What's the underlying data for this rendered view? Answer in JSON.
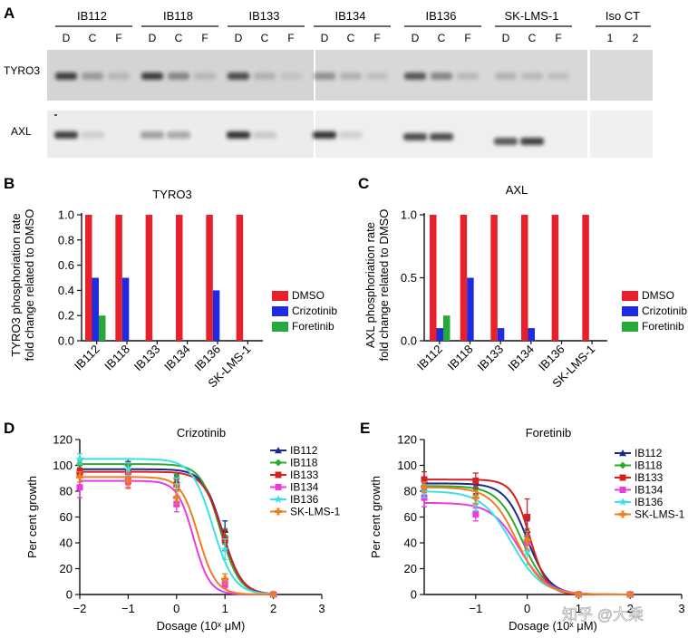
{
  "panel_letters": {
    "A": "A",
    "B": "B",
    "C": "C",
    "D": "D",
    "E": "E"
  },
  "blot": {
    "groups": [
      "IB112",
      "IB118",
      "IB133",
      "IB134",
      "IB136",
      "SK-LMS-1",
      "Iso CT"
    ],
    "lanes": [
      "D",
      "C",
      "F"
    ],
    "iso_lanes": [
      "1",
      "2"
    ],
    "rows": [
      "TYRO3",
      "AXL"
    ],
    "tyro3_intensity": [
      [
        0.85,
        0.45,
        0.25
      ],
      [
        0.85,
        0.55,
        0.25
      ],
      [
        0.8,
        0.3,
        0.15
      ],
      [
        0.5,
        0.3,
        0.2
      ],
      [
        0.75,
        0.55,
        0.25
      ],
      [
        0.3,
        0.25,
        0.2
      ]
    ],
    "axl_intensity": [
      [
        0.85,
        0.15,
        0.05
      ],
      [
        0.45,
        0.4,
        0.05
      ],
      [
        0.9,
        0.2,
        0.05
      ],
      [
        0.9,
        0.15,
        0.05
      ],
      [
        0.8,
        0.8,
        0.05
      ],
      [
        0.75,
        0.85,
        0.05
      ]
    ]
  },
  "watermark": "知乎 @大乘",
  "chart_data": [
    {
      "id": "B",
      "type": "bar",
      "title": "TYRO3",
      "ylabel_lines": [
        "TYRO3 phosphoriation rate",
        "fold change related to DMSO"
      ],
      "xlabel": "",
      "categories": [
        "IB112",
        "IB118",
        "IB133",
        "IB134",
        "IB136",
        "SK-LMS-1"
      ],
      "ylim": [
        0,
        1.0
      ],
      "yticks": [
        "0.0",
        "0.2",
        "0.4",
        "0.6",
        "0.8",
        "1.0"
      ],
      "series": [
        {
          "name": "DMSO",
          "color": "#e8202a",
          "values": [
            1.0,
            1.0,
            1.0,
            1.0,
            1.0,
            1.0
          ]
        },
        {
          "name": "Crizotinib",
          "color": "#1f2be0",
          "values": [
            0.5,
            0.5,
            0,
            0,
            0.4,
            0
          ]
        },
        {
          "name": "Foretinib",
          "color": "#27a83a",
          "values": [
            0.2,
            0,
            0,
            0,
            0,
            0
          ]
        }
      ],
      "legend": "right"
    },
    {
      "id": "C",
      "type": "bar",
      "title": "AXL",
      "ylabel_lines": [
        "AXL phosphoriation rate",
        "fold change related to DMSO"
      ],
      "xlabel": "",
      "categories": [
        "IB112",
        "IB118",
        "IB133",
        "IB134",
        "IB136",
        "SK-LMS-1"
      ],
      "ylim": [
        0,
        1.0
      ],
      "yticks": [
        "0.0",
        "0.5",
        "1.0"
      ],
      "series": [
        {
          "name": "DMSO",
          "color": "#e8202a",
          "values": [
            1.0,
            1.0,
            1.0,
            1.0,
            1.0,
            1.0
          ]
        },
        {
          "name": "Crizotinib",
          "color": "#1f2be0",
          "values": [
            0.1,
            0.5,
            0.1,
            0.1,
            0,
            0
          ]
        },
        {
          "name": "Foretinib",
          "color": "#27a83a",
          "values": [
            0.2,
            0,
            0,
            0,
            0,
            0
          ]
        }
      ],
      "legend": "right"
    },
    {
      "id": "D",
      "type": "line",
      "title": "Crizotinib",
      "xlabel": "Dosage (10ˣ μM)",
      "ylabel": "Per cent growth",
      "xlim": [
        -2,
        3
      ],
      "ylim": [
        0,
        120
      ],
      "xticks": [
        "−2",
        "−1",
        "0",
        "1",
        "2",
        "3"
      ],
      "yticks": [
        "0",
        "20",
        "40",
        "60",
        "80",
        "100",
        "120"
      ],
      "legend": "top-right",
      "series": [
        {
          "name": "IB112",
          "color": "#1a2a8c",
          "marker": "triangle",
          "top": 97,
          "ec50": 0.95,
          "hill": 2.2,
          "points": [
            [
              -2,
              96
            ],
            [
              -1,
              97
            ],
            [
              0,
              88
            ],
            [
              1,
              50
            ],
            [
              2,
              0
            ]
          ],
          "errors": [
            4,
            6,
            4,
            7,
            1
          ]
        },
        {
          "name": "IB118",
          "color": "#2eab2e",
          "marker": "diamond",
          "top": 101,
          "ec50": 0.9,
          "hill": 2.2,
          "points": [
            [
              -2,
              101
            ],
            [
              -1,
              100
            ],
            [
              0,
              90
            ],
            [
              1,
              45
            ],
            [
              2,
              0
            ]
          ],
          "errors": [
            3,
            5,
            3,
            6,
            1
          ]
        },
        {
          "name": "IB133",
          "color": "#d42020",
          "marker": "square",
          "top": 95,
          "ec50": 0.95,
          "hill": 2.2,
          "points": [
            [
              -2,
              95
            ],
            [
              -1,
              95
            ],
            [
              0,
              85
            ],
            [
              1,
              42
            ],
            [
              2,
              0
            ]
          ],
          "errors": [
            3,
            10,
            4,
            8,
            1
          ]
        },
        {
          "name": "IB134",
          "color": "#e83ce0",
          "marker": "square",
          "top": 88,
          "ec50": 0.35,
          "hill": 2.6,
          "points": [
            [
              -2,
              83
            ],
            [
              -1,
              88
            ],
            [
              0,
              70
            ],
            [
              1,
              8
            ],
            [
              2,
              0
            ]
          ],
          "errors": [
            8,
            5,
            6,
            3,
            1
          ]
        },
        {
          "name": "IB136",
          "color": "#3ce0e8",
          "marker": "star",
          "top": 105,
          "ec50": 0.75,
          "hill": 2.0,
          "points": [
            [
              -2,
              105
            ],
            [
              -1,
              97
            ],
            [
              0,
              85
            ],
            [
              1,
              35
            ],
            [
              2,
              0
            ]
          ],
          "errors": [
            4,
            5,
            5,
            8,
            1
          ]
        },
        {
          "name": "SK-LMS-1",
          "color": "#f07d20",
          "marker": "cross",
          "top": 91,
          "ec50": 0.45,
          "hill": 2.4,
          "points": [
            [
              -2,
              91
            ],
            [
              -1,
              88
            ],
            [
              0,
              75
            ],
            [
              1,
              12
            ],
            [
              2,
              0
            ]
          ],
          "errors": [
            4,
            6,
            5,
            4,
            1
          ]
        }
      ]
    },
    {
      "id": "E",
      "type": "line",
      "title": "Foretinib",
      "xlabel": "Dosage (10ˣ μM)",
      "ylabel": "Per cent growth",
      "xlim": [
        -2,
        3
      ],
      "ylim": [
        0,
        120
      ],
      "xticks": [
        "−1",
        "0",
        "1",
        "2",
        "3"
      ],
      "yticks": [
        "0",
        "20",
        "40",
        "60",
        "80",
        "100",
        "120"
      ],
      "legend": "top-right",
      "series": [
        {
          "name": "IB112",
          "color": "#1a2a8c",
          "marker": "triangle",
          "top": 86,
          "ec50": 0.0,
          "hill": 2.0,
          "points": [
            [
              -2,
              86
            ],
            [
              -1,
              84
            ],
            [
              0,
              50
            ],
            [
              1,
              0
            ],
            [
              2,
              0
            ]
          ],
          "errors": [
            5,
            6,
            7,
            1,
            1
          ]
        },
        {
          "name": "IB118",
          "color": "#2eab2e",
          "marker": "diamond",
          "top": 84,
          "ec50": -0.1,
          "hill": 1.8,
          "points": [
            [
              -2,
              84
            ],
            [
              -1,
              82
            ],
            [
              0,
              45
            ],
            [
              1,
              0
            ],
            [
              2,
              0
            ]
          ],
          "errors": [
            4,
            5,
            6,
            1,
            1
          ]
        },
        {
          "name": "IB133",
          "color": "#d42020",
          "marker": "square",
          "top": 89,
          "ec50": 0.05,
          "hill": 2.6,
          "points": [
            [
              -2,
              89
            ],
            [
              -1,
              88
            ],
            [
              0,
              60
            ],
            [
              1,
              0
            ],
            [
              2,
              0
            ]
          ],
          "errors": [
            6,
            6,
            14,
            1,
            1
          ]
        },
        {
          "name": "IB134",
          "color": "#e83ce0",
          "marker": "square",
          "top": 71,
          "ec50": -0.15,
          "hill": 1.6,
          "points": [
            [
              -2,
              75
            ],
            [
              -1,
              62
            ],
            [
              0,
              40
            ],
            [
              1,
              0
            ],
            [
              2,
              0
            ]
          ],
          "errors": [
            7,
            5,
            6,
            1,
            1
          ]
        },
        {
          "name": "IB136",
          "color": "#3ce0e8",
          "marker": "star",
          "top": 80,
          "ec50": -0.3,
          "hill": 1.5,
          "points": [
            [
              -2,
              80
            ],
            [
              -1,
              70
            ],
            [
              0,
              33
            ],
            [
              1,
              0
            ],
            [
              2,
              0
            ]
          ],
          "errors": [
            5,
            5,
            10,
            1,
            1
          ]
        },
        {
          "name": "SK-LMS-1",
          "color": "#f07d20",
          "marker": "cross",
          "top": 83,
          "ec50": -0.2,
          "hill": 1.7,
          "points": [
            [
              -2,
              83
            ],
            [
              -1,
              75
            ],
            [
              0,
              42
            ],
            [
              1,
              0
            ],
            [
              2,
              0
            ]
          ],
          "errors": [
            4,
            5,
            7,
            1,
            1
          ]
        }
      ]
    }
  ]
}
